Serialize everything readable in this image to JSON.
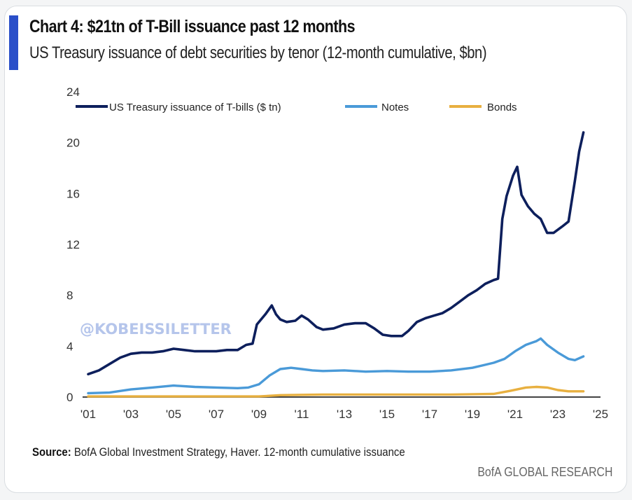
{
  "header": {
    "title": "Chart 4: $21tn of T-Bill issuance past 12 months",
    "subtitle": "US Treasury issuance of debt securities by tenor (12-month cumulative, $bn)"
  },
  "footer": {
    "source_label": "Source:",
    "source_text": " BofA Global Investment Strategy, Haver. 12-month cumulative issuance",
    "brand": "BofA GLOBAL RESEARCH"
  },
  "watermark": "@KOBEISSILETTER",
  "colors": {
    "accent": "#2a4fc9",
    "tbills": "#0d1f5c",
    "notes": "#4a9ad8",
    "bonds": "#e8b040",
    "axis": "#444444"
  },
  "chart_data": {
    "type": "line",
    "title": "Chart 4: $21tn of T-Bill issuance past 12 months",
    "subtitle": "US Treasury issuance of debt securities by tenor (12-month cumulative, $bn)",
    "xlabel": "",
    "ylabel": "",
    "xlim": [
      2001,
      2025
    ],
    "ylim": [
      0,
      24
    ],
    "x_ticks": [
      2001,
      2003,
      2005,
      2007,
      2009,
      2011,
      2013,
      2015,
      2017,
      2019,
      2021,
      2023,
      2025
    ],
    "x_tick_labels": [
      "'01",
      "'03",
      "'05",
      "'07",
      "'09",
      "'11",
      "'13",
      "'15",
      "'17",
      "'19",
      "'21",
      "'23",
      "'25"
    ],
    "y_ticks": [
      0,
      4,
      8,
      12,
      16,
      20,
      24
    ],
    "y_tick_labels": [
      "0",
      "4",
      "8",
      "12",
      "16",
      "20",
      "24"
    ],
    "grid": false,
    "legend_position": "top",
    "series": [
      {
        "name": "US Treasury issuance of T-bills ($ tn)",
        "key": "tbills",
        "x": [
          2001.0,
          2001.5,
          2002.0,
          2002.5,
          2003.0,
          2003.5,
          2004.0,
          2004.5,
          2005.0,
          2005.5,
          2006.0,
          2006.5,
          2007.0,
          2007.5,
          2008.0,
          2008.4,
          2008.7,
          2008.9,
          2009.3,
          2009.6,
          2009.8,
          2010.0,
          2010.3,
          2010.7,
          2011.0,
          2011.3,
          2011.7,
          2012.0,
          2012.5,
          2013.0,
          2013.5,
          2014.0,
          2014.4,
          2014.8,
          2015.2,
          2015.7,
          2016.0,
          2016.4,
          2016.8,
          2017.2,
          2017.6,
          2018.0,
          2018.4,
          2018.8,
          2019.2,
          2019.6,
          2020.0,
          2020.2,
          2020.4,
          2020.6,
          2020.9,
          2021.1,
          2021.3,
          2021.6,
          2021.9,
          2022.2,
          2022.5,
          2022.8,
          2023.2,
          2023.5,
          2023.8,
          2024.0,
          2024.2
        ],
        "y": [
          1.8,
          2.1,
          2.6,
          3.1,
          3.4,
          3.5,
          3.5,
          3.6,
          3.8,
          3.7,
          3.6,
          3.6,
          3.6,
          3.7,
          3.7,
          4.1,
          4.2,
          5.7,
          6.5,
          7.2,
          6.5,
          6.1,
          5.9,
          6.0,
          6.4,
          6.1,
          5.5,
          5.3,
          5.4,
          5.7,
          5.8,
          5.8,
          5.4,
          4.9,
          4.8,
          4.8,
          5.2,
          5.9,
          6.2,
          6.4,
          6.6,
          7.0,
          7.5,
          8.0,
          8.4,
          8.9,
          9.2,
          9.3,
          14.0,
          15.8,
          17.4,
          18.1,
          15.9,
          15.0,
          14.4,
          14.0,
          12.9,
          12.9,
          13.4,
          13.8,
          17.0,
          19.3,
          20.8
        ]
      },
      {
        "name": "Notes",
        "key": "notes",
        "x": [
          2001.0,
          2002.0,
          2003.0,
          2004.0,
          2005.0,
          2006.0,
          2007.0,
          2008.0,
          2008.5,
          2009.0,
          2009.5,
          2010.0,
          2010.5,
          2011.0,
          2011.5,
          2012.0,
          2013.0,
          2014.0,
          2015.0,
          2016.0,
          2017.0,
          2018.0,
          2019.0,
          2019.5,
          2020.0,
          2020.5,
          2021.0,
          2021.5,
          2022.0,
          2022.2,
          2022.5,
          2023.0,
          2023.5,
          2023.8,
          2024.2
        ],
        "y": [
          0.3,
          0.35,
          0.6,
          0.75,
          0.9,
          0.8,
          0.75,
          0.7,
          0.75,
          1.0,
          1.7,
          2.2,
          2.3,
          2.2,
          2.1,
          2.05,
          2.1,
          2.0,
          2.05,
          2.0,
          2.0,
          2.1,
          2.3,
          2.5,
          2.7,
          3.0,
          3.6,
          4.1,
          4.4,
          4.6,
          4.1,
          3.5,
          3.0,
          2.9,
          3.2
        ]
      },
      {
        "name": "Bonds",
        "key": "bonds",
        "x": [
          2001.0,
          2004.0,
          2007.0,
          2009.0,
          2010.0,
          2012.0,
          2015.0,
          2018.0,
          2020.0,
          2020.8,
          2021.5,
          2022.0,
          2022.5,
          2023.0,
          2023.5,
          2024.2
        ],
        "y": [
          0.05,
          0.05,
          0.05,
          0.05,
          0.15,
          0.2,
          0.2,
          0.2,
          0.25,
          0.5,
          0.75,
          0.8,
          0.75,
          0.55,
          0.45,
          0.45
        ]
      }
    ]
  }
}
